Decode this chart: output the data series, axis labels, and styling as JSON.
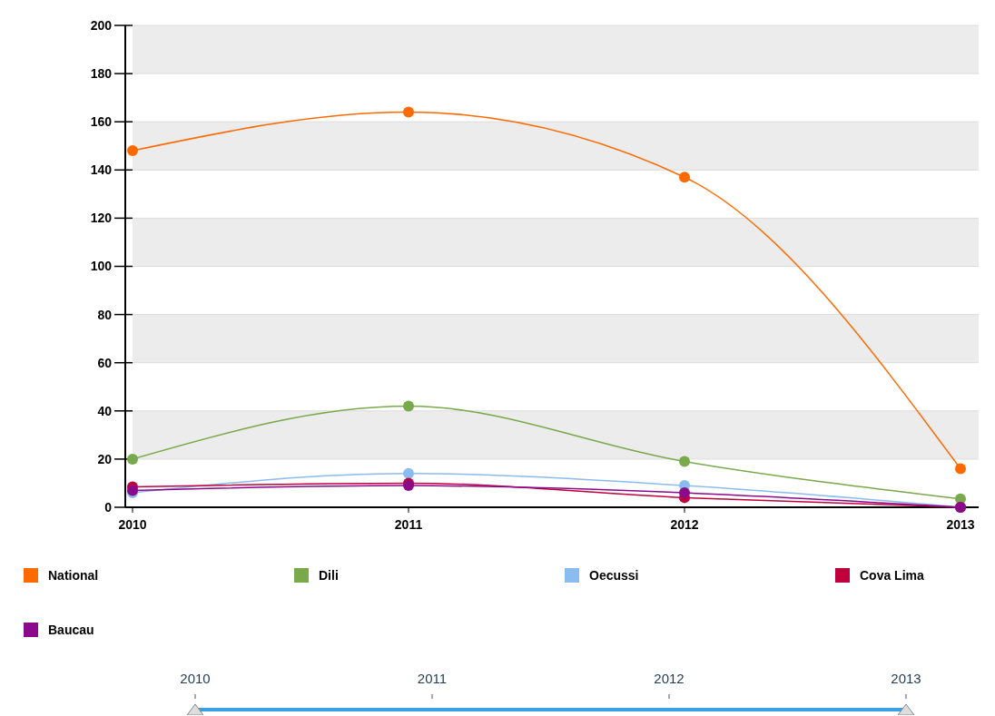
{
  "chart_data": {
    "type": "line",
    "categories": [
      "2010",
      "2011",
      "2012",
      "2013"
    ],
    "series": [
      {
        "name": "National",
        "color": "#ff6a00",
        "values": [
          148,
          164,
          137,
          16
        ]
      },
      {
        "name": "Dili",
        "color": "#78a94a",
        "values": [
          20,
          42,
          19,
          3.5
        ]
      },
      {
        "name": "Oecussi",
        "color": "#8bbcef",
        "values": [
          6,
          14,
          9,
          0
        ]
      },
      {
        "name": "Cova Lima",
        "color": "#c0003c",
        "values": [
          8.5,
          10,
          4,
          0
        ]
      },
      {
        "name": "Baucau",
        "color": "#8b0a8b",
        "values": [
          7,
          9,
          6,
          0
        ]
      }
    ],
    "ylim": [
      0,
      200
    ],
    "yticks": [
      0,
      20,
      40,
      60,
      80,
      100,
      120,
      140,
      160,
      180,
      200
    ],
    "grid": "y",
    "legend": "bottom",
    "marker": "circle",
    "line_style": "solid"
  }
}
